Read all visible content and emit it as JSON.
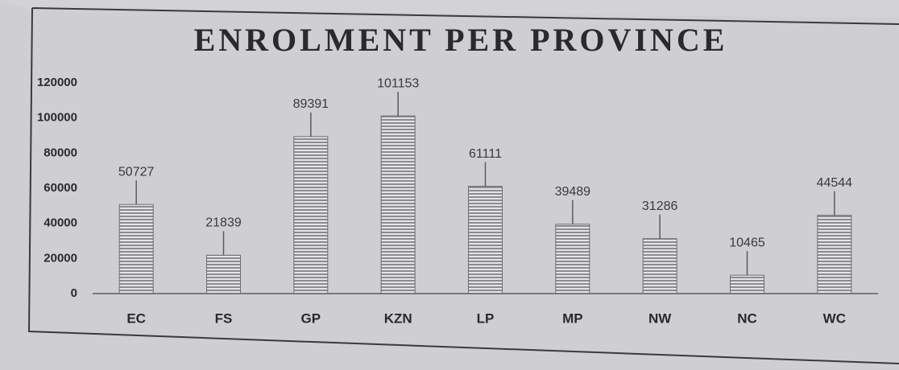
{
  "chart_data": {
    "type": "bar",
    "title": "ENROLMENT PER PROVINCE",
    "categories": [
      "EC",
      "FS",
      "GP",
      "KZN",
      "LP",
      "MP",
      "NW",
      "NC",
      "WC"
    ],
    "values": [
      50727,
      21839,
      89391,
      101153,
      61111,
      39489,
      31286,
      10465,
      44544
    ],
    "color": "#8c8c8e",
    "ylim": [
      0,
      120000
    ],
    "yticks": [
      0,
      20000,
      40000,
      60000,
      80000,
      100000,
      120000
    ],
    "grid": false
  }
}
